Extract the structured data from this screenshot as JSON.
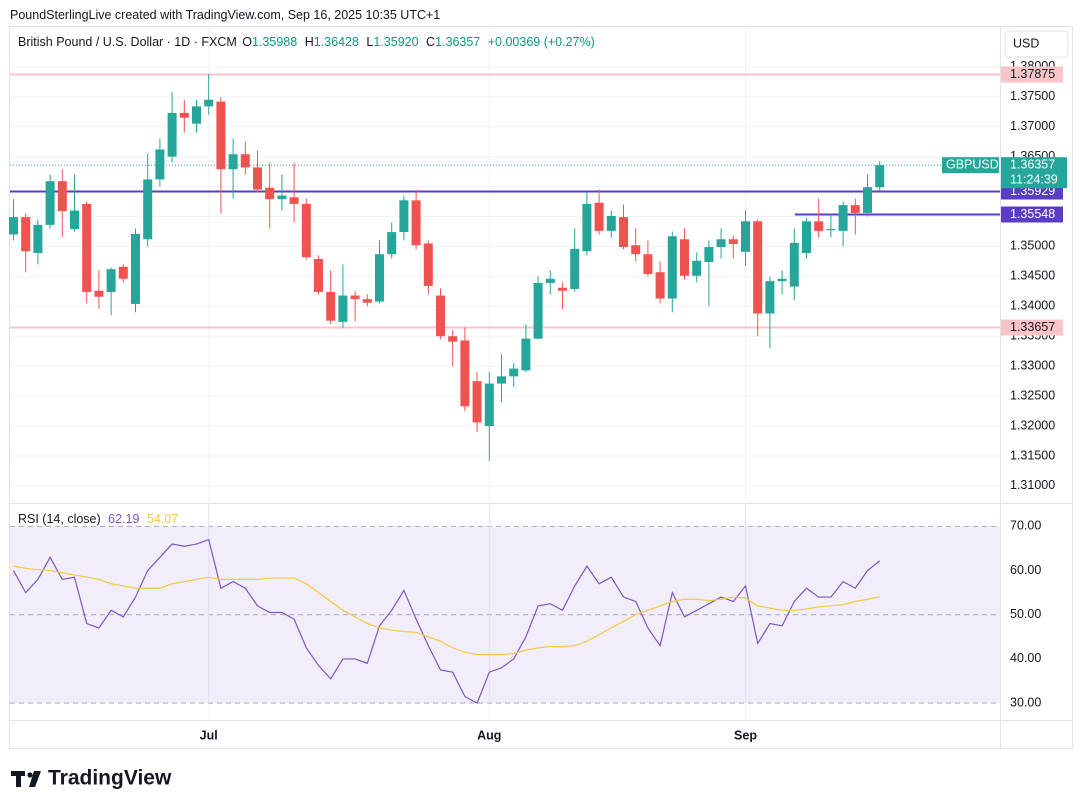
{
  "header": {
    "credit": "PoundSterlingLive created with TradingView.com, Sep 16, 2025 10:35 UTC+1",
    "currency": "USD"
  },
  "watermark": "TradingView",
  "chart_data": [
    {
      "type": "candlestick",
      "title": "British Pound / U.S. Dollar · 1D · FXCM",
      "legend_values": {
        "O": "1.35988",
        "H": "1.36428",
        "L": "1.35920",
        "C": "1.36357",
        "change": "+0.00369 (+0.27%)"
      },
      "symbol": "GBPUSD",
      "countdown": "11:24:39",
      "up_color": "#26a69a",
      "down_color": "#ef5350",
      "categories": [
        null,
        null,
        null,
        null,
        null,
        null,
        null,
        null,
        null,
        null,
        null,
        null,
        null,
        null,
        null,
        null,
        "Jul",
        null,
        null,
        null,
        null,
        null,
        null,
        null,
        null,
        null,
        null,
        null,
        null,
        null,
        null,
        null,
        null,
        null,
        null,
        null,
        null,
        null,
        null,
        "Aug",
        null,
        null,
        null,
        null,
        null,
        null,
        null,
        null,
        null,
        null,
        null,
        null,
        null,
        null,
        null,
        null,
        null,
        null,
        null,
        null,
        "Sep",
        null,
        null,
        null,
        null,
        null,
        null,
        null,
        null,
        null,
        null,
        null
      ],
      "candles": {
        "open": [
          1.352,
          1.3549,
          1.3489,
          1.3536,
          1.3609,
          1.3529,
          1.3571,
          1.3426,
          1.3424,
          1.3466,
          1.3404,
          1.3512,
          1.3612,
          1.365,
          1.3723,
          1.3705,
          1.3734,
          1.3742,
          1.3629,
          1.3654,
          1.3632,
          1.3598,
          1.3579,
          1.3582,
          1.3571,
          1.3479,
          1.3424,
          1.3374,
          1.3418,
          1.3412,
          1.3408,
          1.3487,
          1.3524,
          1.3577,
          1.3505,
          1.3418,
          1.335,
          1.3343,
          1.3275,
          1.32,
          1.3271,
          1.3283,
          1.3293,
          1.3346,
          1.3439,
          1.3431,
          1.3429,
          1.3492,
          1.3573,
          1.3526,
          1.3549,
          1.3502,
          1.3487,
          1.3457,
          1.3413,
          1.3512,
          1.3451,
          1.3474,
          1.3499,
          1.3512,
          1.3491,
          1.3542,
          1.3388,
          1.3442,
          1.3433,
          1.3489,
          1.3542,
          1.3527,
          1.3526,
          1.3569,
          1.3556,
          1.35988
        ],
        "high": [
          1.3579,
          1.3555,
          1.3545,
          1.362,
          1.3629,
          1.362,
          1.3575,
          1.346,
          1.3465,
          1.347,
          1.353,
          1.3655,
          1.368,
          1.3758,
          1.3745,
          1.3745,
          1.3788,
          1.375,
          1.368,
          1.3675,
          1.366,
          1.364,
          1.362,
          1.364,
          1.358,
          1.3485,
          1.346,
          1.347,
          1.3425,
          1.342,
          1.351,
          1.354,
          1.3585,
          1.3595,
          1.351,
          1.343,
          1.336,
          1.3365,
          1.329,
          1.329,
          1.332,
          1.3305,
          1.337,
          1.345,
          1.346,
          1.344,
          1.353,
          1.359,
          1.3595,
          1.356,
          1.357,
          1.353,
          1.351,
          1.3475,
          1.3525,
          1.353,
          1.349,
          1.351,
          1.353,
          1.3518,
          1.356,
          1.3545,
          1.345,
          1.346,
          1.353,
          1.3548,
          1.358,
          1.3555,
          1.3575,
          1.358,
          1.362,
          1.36428
        ],
        "low": [
          1.351,
          1.3457,
          1.347,
          1.353,
          1.3516,
          1.3525,
          1.3405,
          1.3396,
          1.3385,
          1.344,
          1.339,
          1.35,
          1.36,
          1.364,
          1.369,
          1.369,
          1.372,
          1.3555,
          1.358,
          1.362,
          1.359,
          1.353,
          1.356,
          1.354,
          1.3478,
          1.342,
          1.337,
          1.3363,
          1.3375,
          1.34,
          1.3405,
          1.348,
          1.351,
          1.3495,
          1.342,
          1.3345,
          1.33,
          1.3225,
          1.319,
          1.3142,
          1.324,
          1.3265,
          1.329,
          1.3345,
          1.342,
          1.3395,
          1.3425,
          1.3485,
          1.352,
          1.3515,
          1.3495,
          1.3475,
          1.345,
          1.3405,
          1.339,
          1.3445,
          1.344,
          1.34,
          1.348,
          1.348,
          1.3468,
          1.335,
          1.333,
          1.342,
          1.341,
          1.348,
          1.3515,
          1.3515,
          1.35,
          1.352,
          1.355,
          1.3592
        ],
        "close": [
          1.3549,
          1.3492,
          1.3536,
          1.3609,
          1.3559,
          1.356,
          1.3424,
          1.3416,
          1.3462,
          1.3446,
          1.3521,
          1.3612,
          1.3662,
          1.3723,
          1.3715,
          1.3734,
          1.3745,
          1.3629,
          1.3654,
          1.3632,
          1.3595,
          1.3579,
          1.3585,
          1.3571,
          1.3482,
          1.3424,
          1.3376,
          1.3418,
          1.3412,
          1.3406,
          1.3487,
          1.3524,
          1.3577,
          1.3502,
          1.3434,
          1.335,
          1.3341,
          1.3233,
          1.3206,
          1.3271,
          1.3283,
          1.3296,
          1.3346,
          1.3439,
          1.3446,
          1.3426,
          1.3496,
          1.3571,
          1.3526,
          1.3551,
          1.3499,
          1.3487,
          1.3454,
          1.3413,
          1.3517,
          1.3451,
          1.3476,
          1.3499,
          1.3512,
          1.3504,
          1.3542,
          1.3388,
          1.3442,
          1.3446,
          1.3506,
          1.3542,
          1.3526,
          1.3529,
          1.3569,
          1.3556,
          1.3599,
          1.36357
        ]
      },
      "levels": [
        {
          "value": 1.37875,
          "color": "#f8c4c8",
          "full": true
        },
        {
          "value": 1.35929,
          "color": "#5b3cc4",
          "full": true
        },
        {
          "value": 1.35548,
          "color": "#5b3cc4",
          "full": false
        },
        {
          "value": 1.33657,
          "color": "#f8c4c8",
          "full": true
        }
      ],
      "ylim": [
        1.30715,
        1.38665
      ],
      "yticks": [
        {
          "value": 1.31,
          "label": "1.31000"
        },
        {
          "value": 1.315,
          "label": "1.31500"
        },
        {
          "value": 1.32,
          "label": "1.32000"
        },
        {
          "value": 1.325,
          "label": "1.32500"
        },
        {
          "value": 1.33,
          "label": "1.33000"
        },
        {
          "value": 1.335,
          "label": "1.33500"
        },
        {
          "value": 1.34,
          "label": "1.34000"
        },
        {
          "value": 1.345,
          "label": "1.34500"
        },
        {
          "value": 1.35,
          "label": "1.35000"
        },
        {
          "value": 1.355,
          "label": "1.35500"
        },
        {
          "value": 1.36,
          "label": "1.36000"
        },
        {
          "value": 1.365,
          "label": "1.36500"
        },
        {
          "value": 1.37,
          "label": "1.37000"
        },
        {
          "value": 1.375,
          "label": "1.37500"
        },
        {
          "value": 1.38,
          "label": "1.38000"
        }
      ],
      "grid": true
    },
    {
      "type": "line",
      "title": "RSI (14, close)",
      "series": [
        {
          "color": "#7e57c2",
          "values": [
            60,
            55,
            58,
            63,
            58,
            58.5,
            48,
            47,
            51,
            49.5,
            54,
            60,
            63,
            66,
            65.5,
            66,
            67,
            56,
            57.5,
            56,
            52,
            50.5,
            50.5,
            49,
            42.5,
            38.5,
            35.5,
            40,
            40,
            39,
            47.5,
            51,
            55.5,
            49,
            43,
            37.5,
            37,
            31.5,
            30,
            37,
            38,
            40,
            45,
            52,
            52.5,
            51,
            56.5,
            61,
            57,
            58.5,
            54,
            53,
            47,
            43,
            55,
            49.5,
            51,
            52.5,
            54,
            53,
            56.5,
            43.5,
            48,
            47.5,
            53,
            56,
            54,
            54,
            57.5,
            56,
            60,
            62.19
          ]
        },
        {
          "color": "#f5c842",
          "values": [
            61,
            60.5,
            60.2,
            60,
            59.5,
            59,
            58.5,
            58,
            57,
            56.5,
            56,
            56,
            56,
            57,
            57.5,
            58,
            58.5,
            58,
            58,
            58,
            58,
            58.3,
            58.3,
            58.3,
            57,
            55,
            53,
            51,
            49.5,
            48,
            47,
            46.5,
            46.2,
            46,
            45,
            44,
            42.5,
            41.5,
            41,
            41,
            41,
            41.2,
            42,
            42.5,
            42.8,
            42.8,
            43,
            44,
            45.5,
            47,
            48.5,
            50,
            51,
            52,
            53,
            53.5,
            53.5,
            53.2,
            53.5,
            54,
            53.8,
            52,
            51.5,
            51,
            51,
            51.3,
            51.8,
            52,
            52.3,
            53,
            53.5,
            54.07
          ]
        }
      ],
      "ylim": [
        26.18,
        75.06
      ],
      "yticks": [
        {
          "value": 70,
          "label": "70.00"
        },
        {
          "value": 60,
          "label": "60.00"
        },
        {
          "value": 50,
          "label": "50.00"
        },
        {
          "value": 40,
          "label": "40.00"
        },
        {
          "value": 30,
          "label": "30.00"
        }
      ],
      "band_color": "#7e57c2"
    }
  ]
}
